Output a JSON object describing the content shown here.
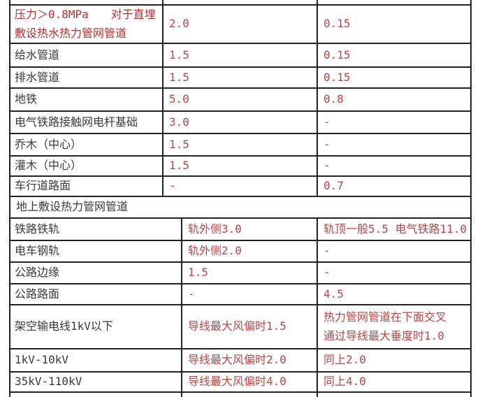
{
  "colors": {
    "background": "#ffffff",
    "border": "#222222",
    "text_dark": "#3a3a3a",
    "text_red": "#c24444",
    "label_red": "#c22c2c"
  },
  "sections": [
    {
      "id": "buried-pipes",
      "rows": [
        {
          "label": "压力＞0.8MPa　　对于直埋\n敷设热水热力管网管道",
          "label_red": true,
          "mid": "2.0",
          "right": "0.15"
        },
        {
          "label": "给水管道",
          "mid": "1.5",
          "right": "0.15"
        },
        {
          "label": "排水管道",
          "mid": "1.5",
          "right": "0.15"
        },
        {
          "label": "地铁",
          "mid": "5.0",
          "right": "0.8"
        },
        {
          "label": "电气铁路接触网电杆基础",
          "mid": "3.0",
          "right": "-"
        },
        {
          "label": "乔木（中心）",
          "mid": "1.5",
          "right": "-"
        },
        {
          "label": "灌木（中心）",
          "mid": "1.5",
          "right": "-"
        },
        {
          "label": "车行道路面",
          "mid": "-",
          "right": "0.7"
        }
      ]
    },
    {
      "id": "above-ground-pipes",
      "header": "地上敷设热力管网管道",
      "rows": [
        {
          "label": "铁路铁轨",
          "mid": "轨外侧3.0",
          "right": "轨顶一般5.5 电气铁路11.0"
        },
        {
          "label": "电车钢轨",
          "mid": "轨外侧2.0",
          "right": "-"
        },
        {
          "label": "公路边缘",
          "mid": "1.5",
          "right": "-"
        },
        {
          "label": "公路路面",
          "mid": "-",
          "right": "4.5"
        },
        {
          "label": "架空输电线1kV以下",
          "mid": "导线最大风偏时1.5",
          "right": "热力管网管道在下面交叉\n通过导线最大垂度时1.0"
        },
        {
          "label": "1kV-10kV",
          "mid": "导线最大风偏时2.0",
          "right": "同上2.0"
        },
        {
          "label": "35kV-110kV",
          "mid": "导线最大风偏时4.0",
          "right": "同上4.0"
        }
      ]
    }
  ]
}
